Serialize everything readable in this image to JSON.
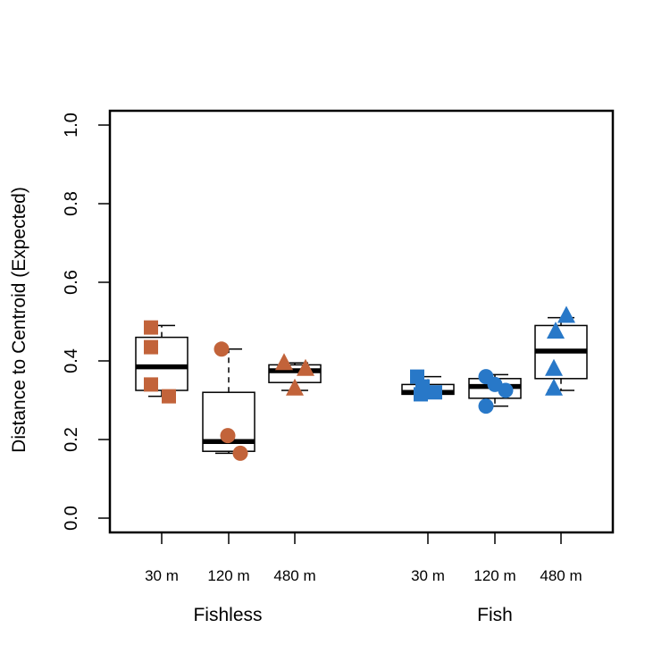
{
  "chart_data": {
    "type": "boxplot",
    "ylabel": "Distance to Centroid (Expected)",
    "ylim": [
      0.0,
      1.0
    ],
    "yticks": [
      "0.0",
      "0.2",
      "0.4",
      "0.6",
      "0.8",
      "1.0"
    ],
    "yticks_values": [
      0.0,
      0.2,
      0.4,
      0.6,
      0.8,
      1.0
    ],
    "groups": [
      "Fishless",
      "Fish"
    ],
    "categories": [
      "30 m",
      "120 m",
      "480 m",
      "30 m",
      "120 m",
      "480 m"
    ],
    "colors": {
      "Fishless": "#C2633A",
      "Fish": "#2878C8"
    },
    "series": [
      {
        "group": "Fishless",
        "category": "30 m",
        "marker": "square",
        "box": {
          "whisker_low": 0.31,
          "q1": 0.325,
          "median": 0.385,
          "q3": 0.46,
          "whisker_high": 0.49
        },
        "points": [
          0.485,
          0.435,
          0.34,
          0.31
        ]
      },
      {
        "group": "Fishless",
        "category": "120 m",
        "marker": "circle",
        "box": {
          "whisker_low": 0.165,
          "q1": 0.17,
          "median": 0.195,
          "q3": 0.32,
          "whisker_high": 0.43
        },
        "points": [
          0.43,
          0.21,
          0.165
        ]
      },
      {
        "group": "Fishless",
        "category": "480 m",
        "marker": "triangle",
        "box": {
          "whisker_low": 0.325,
          "q1": 0.345,
          "median": 0.375,
          "q3": 0.39,
          "whisker_high": 0.395
        },
        "points": [
          0.395,
          0.38,
          0.33
        ]
      },
      {
        "group": "Fish",
        "category": "30 m",
        "marker": "square",
        "box": {
          "whisker_low": 0.315,
          "q1": 0.315,
          "median": 0.32,
          "q3": 0.34,
          "whisker_high": 0.36
        },
        "points": [
          0.36,
          0.335,
          0.32,
          0.315
        ]
      },
      {
        "group": "Fish",
        "category": "120 m",
        "marker": "circle",
        "box": {
          "whisker_low": 0.285,
          "q1": 0.305,
          "median": 0.335,
          "q3": 0.355,
          "whisker_high": 0.365
        },
        "points": [
          0.36,
          0.34,
          0.325,
          0.285
        ]
      },
      {
        "group": "Fish",
        "category": "480 m",
        "marker": "triangle",
        "box": {
          "whisker_low": 0.325,
          "q1": 0.355,
          "median": 0.425,
          "q3": 0.49,
          "whisker_high": 0.51
        },
        "points": [
          0.515,
          0.475,
          0.38,
          0.33
        ]
      }
    ]
  }
}
